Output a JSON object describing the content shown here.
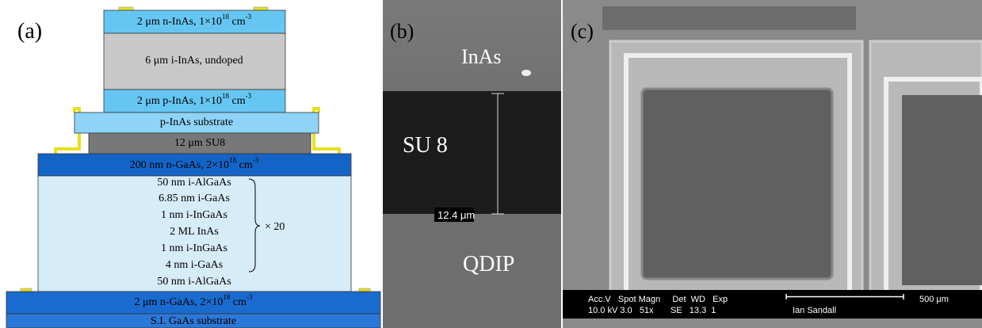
{
  "panel_a": {
    "label": "(a)",
    "layers": [
      [
        "2 μm n-InAs, 1×10",
        "18",
        " cm",
        "-3"
      ],
      [
        "6 μm i-InAs, undoped"
      ],
      [
        "2 μm p-InAs, 1×10",
        "18",
        " cm",
        "-3"
      ],
      [
        "p-InAs substrate"
      ],
      [
        "12 μm SU8"
      ],
      [
        "200 nm n-GaAs, 2×10",
        "18",
        " cm",
        "-3"
      ],
      [
        "2 μm n-GaAs, 2×10",
        "18",
        " cm",
        "-3"
      ],
      [
        "S.I. GaAs substrate"
      ]
    ],
    "superlattice": {
      "lines": [
        "50 nm i-AlGaAs",
        "6.85 nm i-GaAs",
        "1 nm i-InGaAs",
        "2 ML InAs",
        "1 nm i-InGaAs",
        "4 nm i-GaAs",
        "50 nm i-AlGaAs"
      ],
      "repeat": "× 20"
    }
  },
  "panel_b": {
    "label": "(b)",
    "top": "InAs",
    "middle": "SU 8",
    "scale": "12.4 μm",
    "bottom": "QDIP"
  },
  "panel_c": {
    "label": "(c)",
    "info_header": "Acc.V   Spot Magn     Det  WD   Exp",
    "info_values": "10.0 kV 3.0   51x       SE   13.3  1",
    "operator": "Ian Sandall",
    "scale": "500 μm"
  }
}
